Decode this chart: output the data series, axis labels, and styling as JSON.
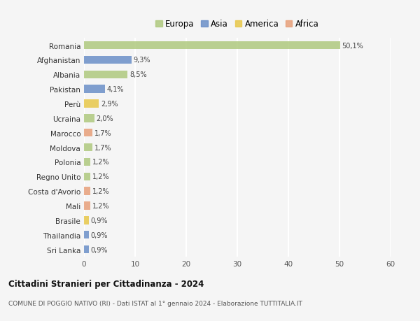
{
  "countries": [
    "Romania",
    "Afghanistan",
    "Albania",
    "Pakistan",
    "Perù",
    "Ucraina",
    "Marocco",
    "Moldova",
    "Polonia",
    "Regno Unito",
    "Costa d'Avorio",
    "Mali",
    "Brasile",
    "Thailandia",
    "Sri Lanka"
  ],
  "values": [
    50.1,
    9.3,
    8.5,
    4.1,
    2.9,
    2.0,
    1.7,
    1.7,
    1.2,
    1.2,
    1.2,
    1.2,
    0.9,
    0.9,
    0.9
  ],
  "labels": [
    "50,1%",
    "9,3%",
    "8,5%",
    "4,1%",
    "2,9%",
    "2,0%",
    "1,7%",
    "1,7%",
    "1,2%",
    "1,2%",
    "1,2%",
    "1,2%",
    "0,9%",
    "0,9%",
    "0,9%"
  ],
  "continents": [
    "Europa",
    "Asia",
    "Europa",
    "Asia",
    "America",
    "Europa",
    "Africa",
    "Europa",
    "Europa",
    "Europa",
    "Africa",
    "Africa",
    "America",
    "Asia",
    "Asia"
  ],
  "colors": {
    "Europa": "#afc97e",
    "Asia": "#6a8fc8",
    "America": "#e8c84a",
    "Africa": "#e8a07a"
  },
  "legend_order": [
    "Europa",
    "Asia",
    "America",
    "Africa"
  ],
  "xlim": [
    0,
    60
  ],
  "xticks": [
    0,
    10,
    20,
    30,
    40,
    50,
    60
  ],
  "title": "Cittadini Stranieri per Cittadinanza - 2024",
  "subtitle": "COMUNE DI POGGIO NATIVO (RI) - Dati ISTAT al 1° gennaio 2024 - Elaborazione TUTTITALIA.IT",
  "background_color": "#f5f5f5",
  "grid_color": "#ffffff",
  "bar_alpha": 0.85,
  "bar_height": 0.55
}
